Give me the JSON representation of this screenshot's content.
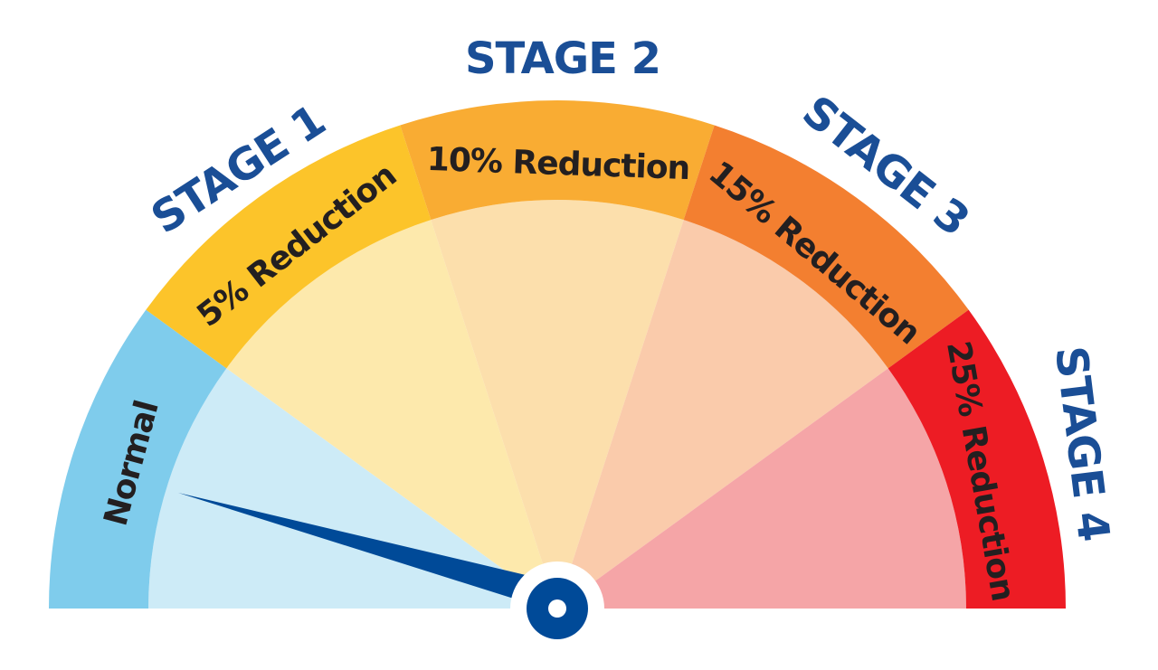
{
  "gauge": {
    "segments": [
      {
        "label": "Normal",
        "stage": "",
        "band_color": "#7FCCEC",
        "fill_color": "#CDEBF7",
        "text_color": "#231F20"
      },
      {
        "label": "5% Reduction",
        "stage": "STAGE 1",
        "band_color": "#FCC42A",
        "fill_color": "#FDE9AC",
        "text_color": "#231F20"
      },
      {
        "label": "10% Reduction",
        "stage": "STAGE 2",
        "band_color": "#F9AC33",
        "fill_color": "#FCDFAC",
        "text_color": "#231F20"
      },
      {
        "label": "15% Reduction",
        "stage": "STAGE 3",
        "band_color": "#F37F30",
        "fill_color": "#FACBAB",
        "text_color": "#231F20"
      },
      {
        "label": "25% Reduction",
        "stage": "STAGE 4",
        "band_color": "#ED1C24",
        "fill_color": "#F5A5A7",
        "text_color": "#231F20"
      }
    ],
    "stage_label_color": "#1A4E96",
    "needle_color": "#004A98",
    "needle_segment": "Normal"
  }
}
